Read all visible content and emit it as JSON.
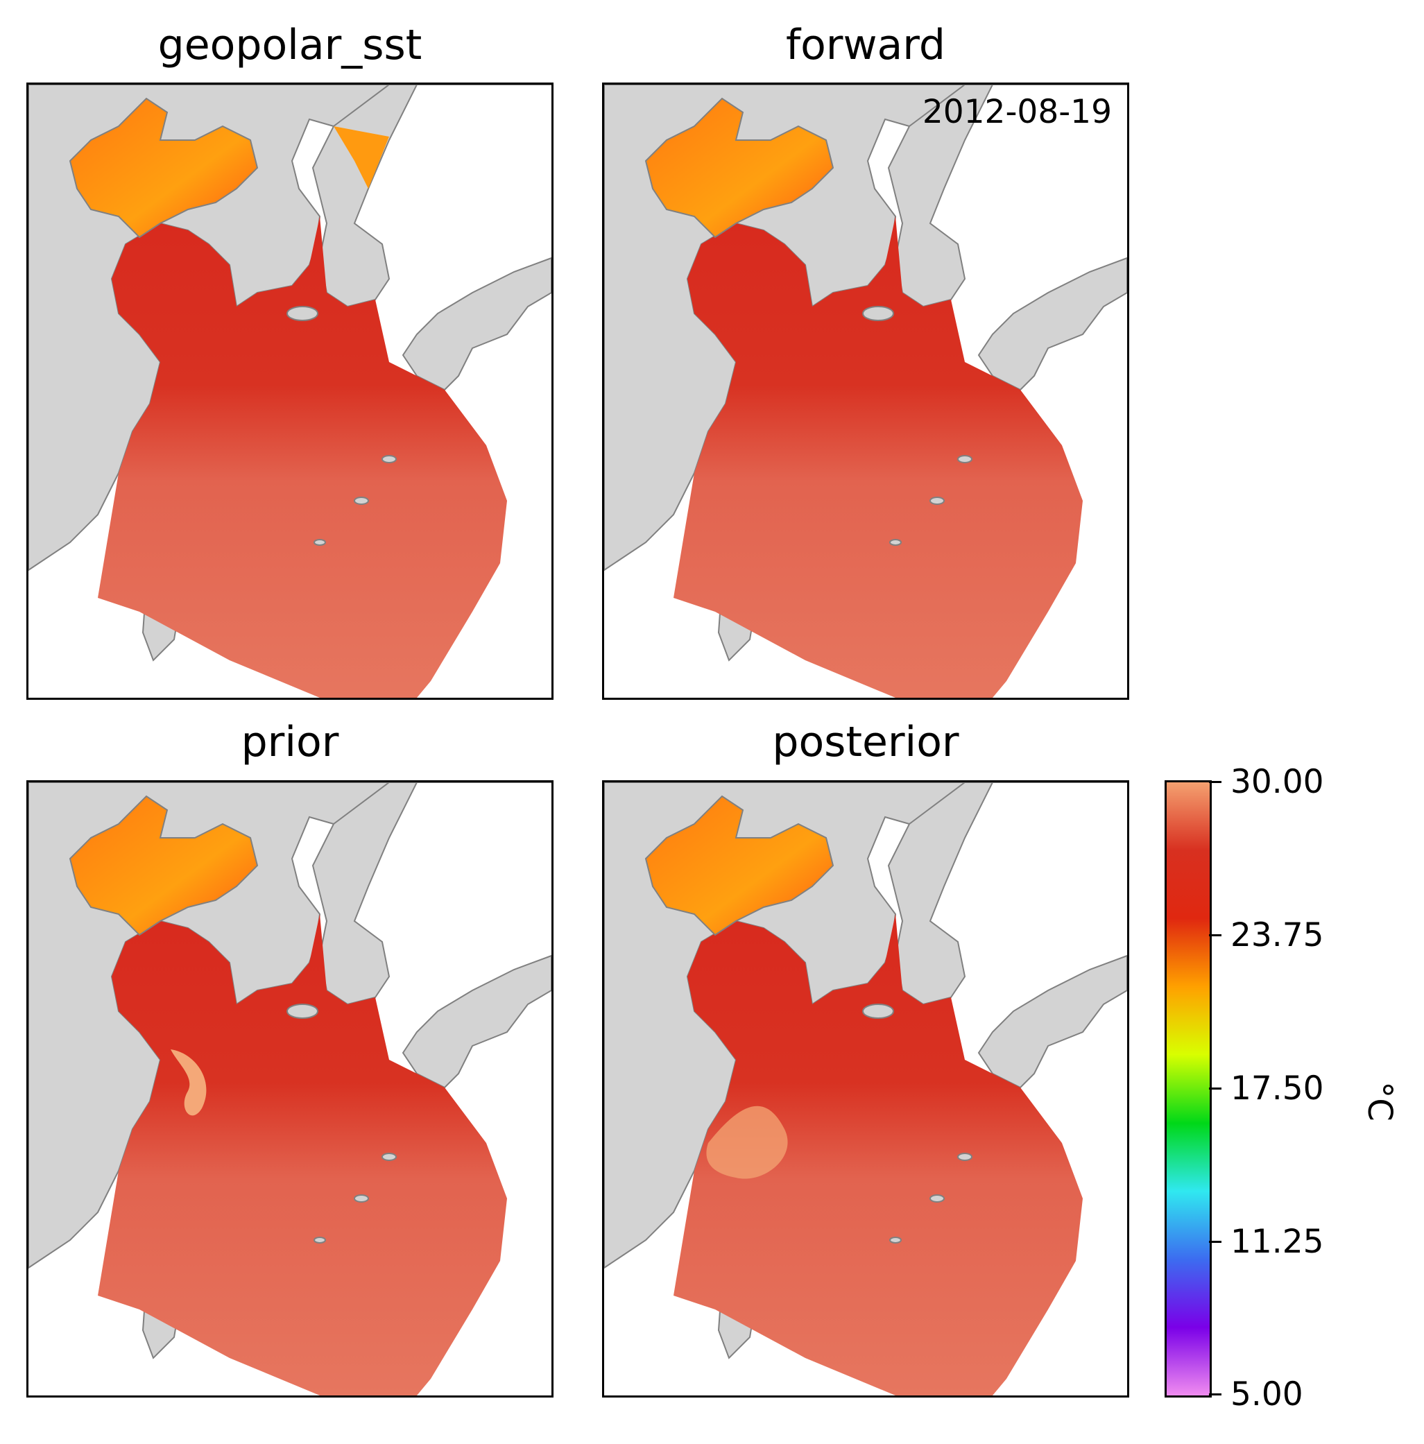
{
  "panels": [
    {
      "title": "geopolar_sst",
      "date": ""
    },
    {
      "title": "forward",
      "date": "2012-08-19"
    },
    {
      "title": "prior",
      "date": ""
    },
    {
      "title": "posterior",
      "date": ""
    }
  ],
  "colorbar": {
    "min": 5.0,
    "max": 30.0,
    "ticks": [
      "30.00",
      "23.75",
      "17.50",
      "11.25",
      "5.00"
    ],
    "unit": "°C",
    "colormap": [
      "#f08cf0",
      "#7a00e8",
      "#3c6cf0",
      "#30e8f0",
      "#00d818",
      "#d8ff00",
      "#ffa000",
      "#e02810",
      "#d83020",
      "#f4a070"
    ]
  },
  "colors": {
    "land": "#d3d3d3",
    "coast": "#808080",
    "sea_warm": "#e4735f",
    "sea_hot": "#d82a1e",
    "sea_bohai": "#ff9010"
  }
}
